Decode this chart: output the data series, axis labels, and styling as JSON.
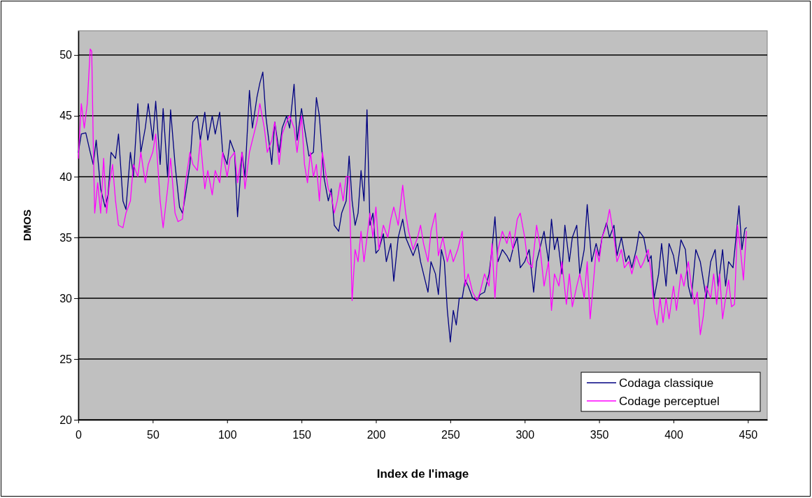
{
  "chart_data": {
    "type": "line",
    "xlabel": "Index de l'image",
    "ylabel": "DMOS",
    "xlim": [
      0,
      463
    ],
    "ylim": [
      20,
      52
    ],
    "xticks": [
      0,
      50,
      100,
      150,
      200,
      250,
      300,
      350,
      400,
      450
    ],
    "yticks": [
      20,
      25,
      30,
      35,
      40,
      45,
      50
    ],
    "grid": "y",
    "legend": "bottom right",
    "marker": "none",
    "line_style": "solid",
    "series": [
      {
        "name": "Codaga classique",
        "color": "#000080",
        "x": [
          0,
          2,
          5,
          8,
          10,
          12,
          15,
          18,
          20,
          22,
          25,
          27,
          30,
          32,
          35,
          37,
          40,
          42,
          45,
          47,
          50,
          52,
          55,
          57,
          60,
          62,
          65,
          68,
          70,
          72,
          75,
          77,
          80,
          82,
          85,
          87,
          90,
          92,
          95,
          97,
          100,
          102,
          105,
          107,
          110,
          112,
          115,
          117,
          120,
          122,
          124,
          126,
          128,
          130,
          132,
          135,
          137,
          140,
          142,
          145,
          147,
          150,
          152,
          155,
          158,
          160,
          162,
          165,
          168,
          170,
          172,
          175,
          177,
          180,
          182,
          184,
          186,
          188,
          190,
          192,
          194,
          196,
          198,
          200,
          202,
          205,
          207,
          210,
          212,
          215,
          218,
          220,
          225,
          228,
          230,
          233,
          235,
          237,
          240,
          242,
          244,
          246,
          248,
          250,
          252,
          254,
          256,
          258,
          260,
          262,
          265,
          268,
          270,
          273,
          276,
          278,
          280,
          282,
          285,
          288,
          290,
          292,
          295,
          297,
          300,
          303,
          306,
          308,
          310,
          313,
          316,
          318,
          320,
          322,
          325,
          327,
          330,
          332,
          335,
          337,
          340,
          342,
          345,
          348,
          350,
          352,
          355,
          357,
          360,
          362,
          365,
          368,
          370,
          372,
          375,
          377,
          380,
          383,
          385,
          387,
          390,
          392,
          395,
          397,
          400,
          402,
          405,
          408,
          410,
          412,
          415,
          418,
          420,
          422,
          425,
          428,
          430,
          433,
          435,
          437,
          440,
          442,
          444,
          446,
          448,
          449
        ],
        "values": [
          42,
          43.5,
          43.6,
          42,
          41,
          43,
          39,
          37.5,
          38.5,
          42,
          41.5,
          43.5,
          38,
          37.3,
          42,
          40,
          46,
          42,
          44,
          46,
          43,
          46.2,
          41,
          45.6,
          40,
          45.5,
          41,
          37.5,
          37,
          38.5,
          41,
          44.5,
          45,
          43,
          45.3,
          43,
          45,
          43.5,
          45.3,
          42,
          41,
          43,
          42,
          36.7,
          42,
          40,
          47.1,
          44,
          46.5,
          47.7,
          48.6,
          45,
          43,
          41,
          44.5,
          42,
          44,
          45,
          44,
          47.6,
          43,
          45.6,
          44,
          41.7,
          42,
          46.5,
          45,
          40,
          38,
          39,
          36,
          35.5,
          37,
          38,
          41.7,
          38,
          36,
          37,
          40.5,
          38,
          45.5,
          36,
          37,
          33.7,
          34,
          35.3,
          33,
          34.5,
          31.4,
          35,
          36.5,
          35,
          33.5,
          34.5,
          33,
          31.5,
          30.5,
          33,
          32,
          30.3,
          34,
          33,
          29,
          26.4,
          29,
          27.8,
          30,
          30,
          31.5,
          31,
          30,
          29.8,
          30.3,
          30.5,
          32,
          34,
          36.7,
          33,
          34,
          33.5,
          33,
          34,
          35,
          32.5,
          33,
          34,
          30.5,
          33,
          34,
          35.5,
          33,
          36.5,
          34,
          35,
          32,
          36,
          33,
          35,
          36,
          32,
          34,
          37.7,
          33,
          34.5,
          33.5,
          35,
          36.2,
          35,
          36,
          33.5,
          35,
          33,
          33.5,
          32.5,
          34,
          35.5,
          35,
          33,
          33.5,
          30,
          32,
          34.5,
          31,
          34.5,
          33.5,
          32,
          34.8,
          34,
          31,
          30,
          34,
          33,
          31.5,
          30,
          33,
          34,
          31,
          34,
          31,
          33,
          32.5,
          35,
          37.6,
          34,
          35.7,
          35.8
        ]
      },
      {
        "name": "Codage perceptuel",
        "color": "#ff00ff",
        "x": [
          0,
          2,
          4,
          6,
          8,
          9,
          10,
          11,
          13,
          15,
          17,
          19,
          21,
          23,
          25,
          27,
          30,
          32,
          35,
          37,
          40,
          42,
          45,
          47,
          50,
          52,
          55,
          57,
          60,
          62,
          65,
          67,
          70,
          72,
          75,
          77,
          80,
          82,
          85,
          87,
          90,
          92,
          95,
          97,
          100,
          102,
          105,
          107,
          110,
          112,
          115,
          117,
          120,
          122,
          125,
          127,
          130,
          132,
          135,
          137,
          140,
          142,
          145,
          147,
          150,
          152,
          154,
          156,
          158,
          160,
          162,
          164,
          166,
          168,
          170,
          172,
          174,
          176,
          178,
          180,
          182,
          184,
          186,
          188,
          190,
          192,
          194,
          196,
          198,
          200,
          202,
          205,
          208,
          210,
          212,
          215,
          218,
          220,
          222,
          225,
          228,
          230,
          232,
          235,
          237,
          240,
          242,
          245,
          248,
          250,
          252,
          255,
          258,
          260,
          262,
          265,
          268,
          270,
          273,
          276,
          278,
          280,
          282,
          285,
          288,
          290,
          292,
          295,
          297,
          300,
          302,
          305,
          308,
          310,
          313,
          316,
          318,
          320,
          323,
          325,
          328,
          330,
          332,
          335,
          337,
          340,
          342,
          344,
          346,
          348,
          350,
          352,
          355,
          357,
          360,
          362,
          365,
          367,
          370,
          372,
          375,
          378,
          380,
          383,
          385,
          387,
          389,
          391,
          393,
          395,
          397,
          400,
          402,
          405,
          407,
          410,
          412,
          414,
          416,
          418,
          420,
          422,
          425,
          427,
          429,
          431,
          433,
          435,
          437,
          439,
          441,
          443,
          445,
          447,
          449
        ],
        "values": [
          41.5,
          46,
          44,
          46,
          50.5,
          50.3,
          43,
          37,
          39.5,
          37,
          41.5,
          37,
          39.5,
          41,
          38,
          36,
          35.8,
          37,
          38,
          41,
          40,
          42,
          39.5,
          41,
          42,
          43.5,
          38,
          35.8,
          39,
          41.5,
          37,
          36.3,
          36.5,
          39.5,
          42,
          41,
          40.5,
          43,
          39,
          40.5,
          38.5,
          40.5,
          39.5,
          42,
          40,
          41.5,
          42,
          39.5,
          42,
          39,
          42,
          43,
          44.5,
          46,
          44,
          42,
          43,
          44.5,
          41,
          43.5,
          44.5,
          45,
          44,
          42,
          45,
          41,
          39.5,
          42,
          40,
          41,
          38,
          42,
          40.5,
          39,
          38.5,
          37,
          38,
          39.5,
          38,
          40,
          40,
          29.8,
          34,
          33,
          35.5,
          33,
          35,
          37,
          35,
          37.5,
          34,
          36,
          35,
          36.5,
          37.5,
          36,
          39.3,
          37,
          35.5,
          34,
          35,
          36,
          34.5,
          33,
          35.5,
          37,
          33.5,
          35,
          33,
          34,
          33,
          34,
          35.5,
          31,
          32,
          30.5,
          29.8,
          30.5,
          32,
          31,
          34.5,
          30,
          34,
          35.5,
          34.5,
          35.5,
          34,
          36.5,
          37,
          35,
          33,
          32.5,
          36,
          34.5,
          31,
          33,
          29,
          32,
          31,
          33,
          29.5,
          32,
          29.3,
          31,
          32,
          30,
          33,
          28.3,
          31,
          34,
          33,
          35,
          36,
          37.3,
          35,
          33,
          34,
          32.5,
          33,
          32,
          33.5,
          32.5,
          33,
          34,
          32,
          29,
          27.8,
          30,
          28,
          30,
          28.3,
          31,
          29,
          32,
          31,
          33,
          31,
          29.5,
          30.5,
          27,
          28.5,
          31,
          30,
          32,
          29.5,
          32,
          28.3,
          30,
          31.5,
          29.3,
          29.5,
          36,
          34,
          31.5,
          35.5
        ]
      }
    ]
  }
}
